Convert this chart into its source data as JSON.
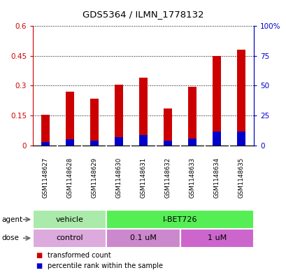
{
  "title": "GDS5364 / ILMN_1778132",
  "samples": [
    "GSM1148627",
    "GSM1148628",
    "GSM1148629",
    "GSM1148630",
    "GSM1148631",
    "GSM1148632",
    "GSM1148633",
    "GSM1148634",
    "GSM1148635"
  ],
  "transformed_count": [
    0.155,
    0.27,
    0.235,
    0.305,
    0.34,
    0.185,
    0.295,
    0.45,
    0.48
  ],
  "percentile_rank_left": [
    0.018,
    0.03,
    0.024,
    0.042,
    0.054,
    0.024,
    0.036,
    0.069,
    0.069
  ],
  "ylim_left": [
    0,
    0.6
  ],
  "ylim_right": [
    0,
    100
  ],
  "yticks_left": [
    0,
    0.15,
    0.3,
    0.45,
    0.6
  ],
  "yticks_right": [
    0,
    25,
    50,
    75,
    100
  ],
  "ytick_labels_left": [
    "0",
    "0.15",
    "0.3",
    "0.45",
    "0.6"
  ],
  "ytick_labels_right": [
    "0",
    "25",
    "50",
    "75",
    "100%"
  ],
  "bar_color": "#cc0000",
  "percentile_color": "#0000cc",
  "agent_groups": [
    {
      "label": "vehicle",
      "start": 0,
      "end": 3,
      "color": "#aaeaaa"
    },
    {
      "label": "I-BET726",
      "start": 3,
      "end": 9,
      "color": "#55ee55"
    }
  ],
  "dose_groups": [
    {
      "label": "control",
      "start": 0,
      "end": 3,
      "color": "#ddaadd"
    },
    {
      "label": "0.1 uM",
      "start": 3,
      "end": 6,
      "color": "#cc88cc"
    },
    {
      "label": "1 uM",
      "start": 6,
      "end": 9,
      "color": "#cc66cc"
    }
  ],
  "legend_red_label": "transformed count",
  "legend_blue_label": "percentile rank within the sample",
  "background_color": "#ffffff",
  "tick_label_color_left": "#cc0000",
  "tick_label_color_right": "#0000cc",
  "label_bg_color": "#cccccc",
  "bar_width": 0.35
}
